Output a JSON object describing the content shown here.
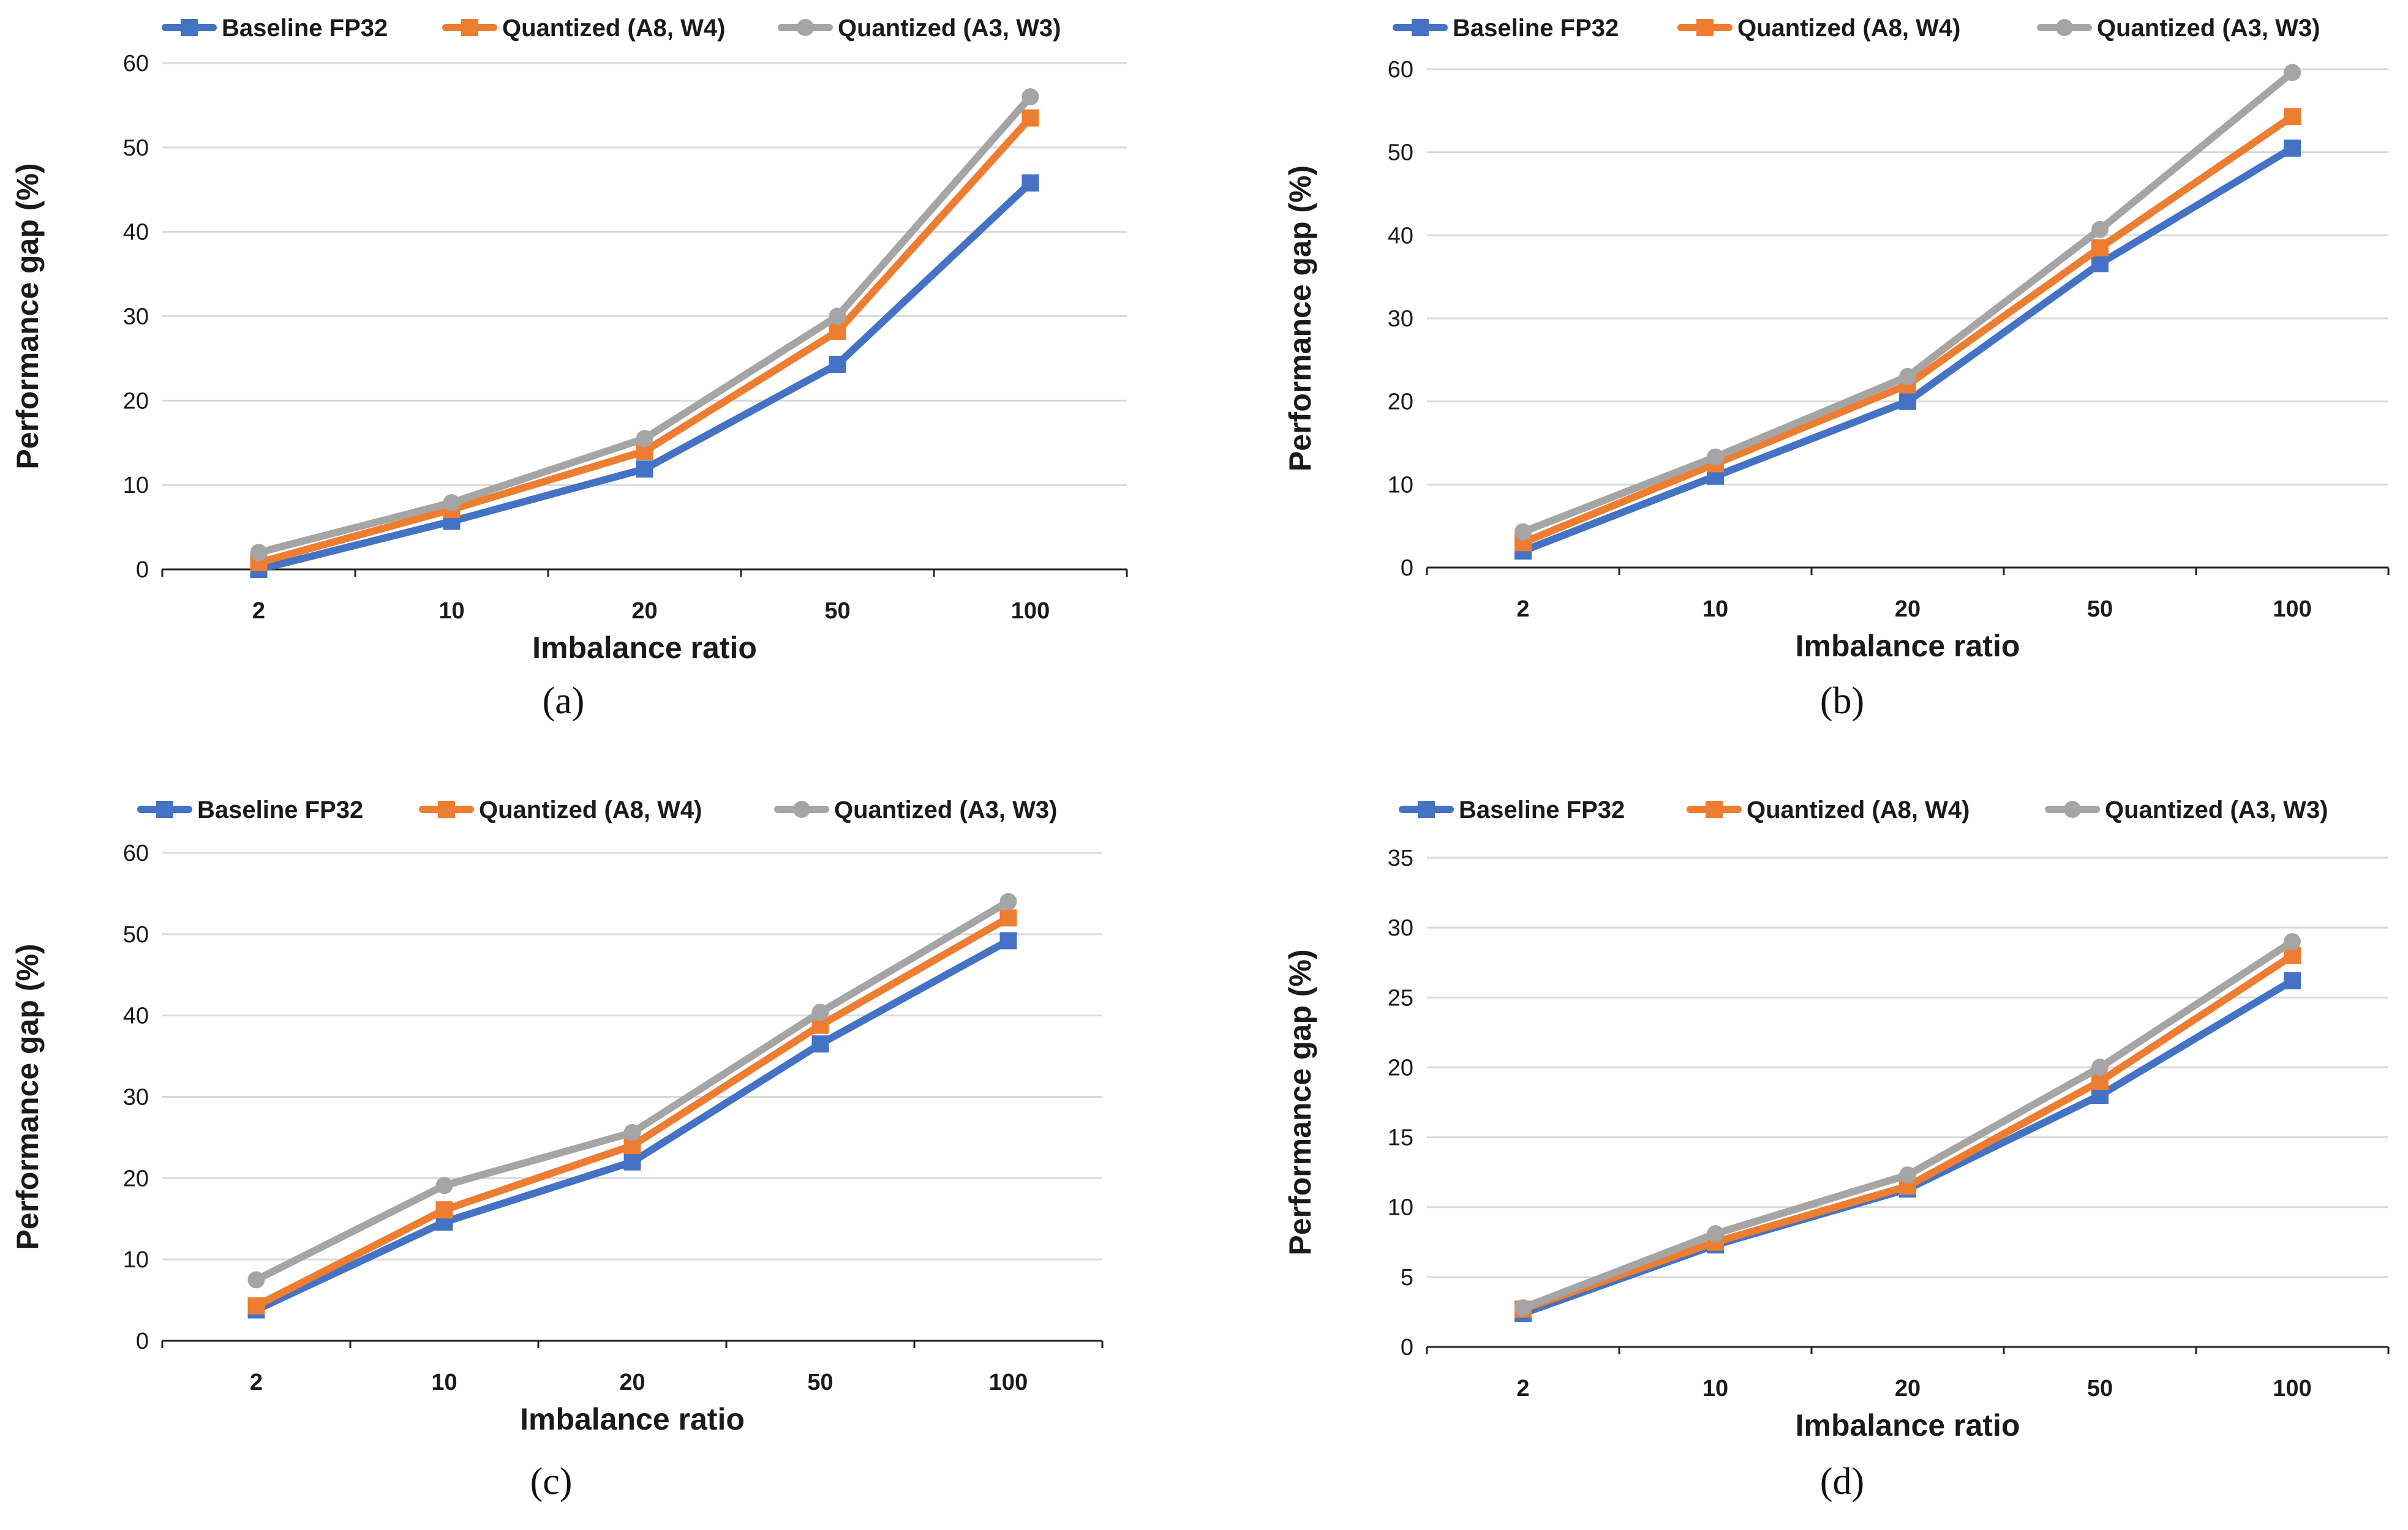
{
  "colors": {
    "baseline": "#4472C4",
    "a8w4": "#ED7D31",
    "a3w3": "#A5A5A5",
    "grid": "#D9D9D9",
    "axis": "#222222"
  },
  "chart_data": [
    {
      "type": "line",
      "caption": "(a)",
      "xlabel": "Imbalance ratio",
      "ylabel": "Performance gap (%)",
      "categories": [
        "2",
        "10",
        "20",
        "50",
        "100"
      ],
      "ylim": [
        0,
        60
      ],
      "yticks": [
        0,
        10,
        20,
        30,
        40,
        50,
        60
      ],
      "grid": true,
      "legend_position": "top",
      "series": [
        {
          "name": "Baseline FP32",
          "marker": "square",
          "values": [
            0,
            5.7,
            11.9,
            24.3,
            45.8
          ]
        },
        {
          "name": "Quantized (A8, W4)",
          "marker": "square",
          "values": [
            0.8,
            7.1,
            14.0,
            28.2,
            53.5
          ]
        },
        {
          "name": "Quantized (A3, W3)",
          "marker": "circle",
          "values": [
            2.0,
            7.9,
            15.5,
            30.0,
            56.0
          ]
        }
      ]
    },
    {
      "type": "line",
      "caption": "(b)",
      "xlabel": "Imbalance ratio",
      "ylabel": "Performance gap (%)",
      "categories": [
        "2",
        "10",
        "20",
        "50",
        "100"
      ],
      "ylim": [
        0,
        60
      ],
      "yticks": [
        0,
        10,
        20,
        30,
        40,
        50,
        60
      ],
      "grid": true,
      "legend_position": "top",
      "series": [
        {
          "name": "Baseline FP32",
          "marker": "square",
          "values": [
            2.0,
            11.0,
            20.0,
            36.6,
            50.5
          ]
        },
        {
          "name": "Quantized (A8, W4)",
          "marker": "square",
          "values": [
            3.0,
            12.5,
            22.0,
            38.5,
            54.3
          ]
        },
        {
          "name": "Quantized (A3, W3)",
          "marker": "circle",
          "values": [
            4.3,
            13.3,
            23.0,
            40.7,
            59.6
          ]
        }
      ]
    },
    {
      "type": "line",
      "caption": "(c)",
      "xlabel": "Imbalance ratio",
      "ylabel": "Performance gap (%)",
      "categories": [
        "2",
        "10",
        "20",
        "50",
        "100"
      ],
      "ylim": [
        0,
        60
      ],
      "yticks": [
        0,
        10,
        20,
        30,
        40,
        50,
        60
      ],
      "grid": true,
      "legend_position": "top",
      "series": [
        {
          "name": "Baseline FP32",
          "marker": "square",
          "values": [
            3.8,
            14.6,
            22.0,
            36.5,
            49.2
          ]
        },
        {
          "name": "Quantized (A8, W4)",
          "marker": "square",
          "values": [
            4.3,
            16.1,
            24.0,
            38.8,
            52.0
          ]
        },
        {
          "name": "Quantized (A3, W3)",
          "marker": "circle",
          "values": [
            7.5,
            19.1,
            25.6,
            40.4,
            54.0
          ]
        }
      ]
    },
    {
      "type": "line",
      "caption": "(d)",
      "xlabel": "Imbalance ratio",
      "ylabel": "Performance gap (%)",
      "categories": [
        "2",
        "10",
        "20",
        "50",
        "100"
      ],
      "ylim": [
        0,
        35
      ],
      "yticks": [
        0,
        5,
        10,
        15,
        20,
        25,
        30,
        35
      ],
      "grid": true,
      "legend_position": "top",
      "series": [
        {
          "name": "Baseline FP32",
          "marker": "square",
          "values": [
            2.4,
            7.3,
            11.3,
            18.0,
            26.2
          ]
        },
        {
          "name": "Quantized (A8, W4)",
          "marker": "square",
          "values": [
            2.7,
            7.5,
            11.5,
            19.0,
            28.0
          ]
        },
        {
          "name": "Quantized (A3, W3)",
          "marker": "circle",
          "values": [
            2.8,
            8.1,
            12.3,
            20.0,
            29.0
          ]
        }
      ]
    }
  ]
}
